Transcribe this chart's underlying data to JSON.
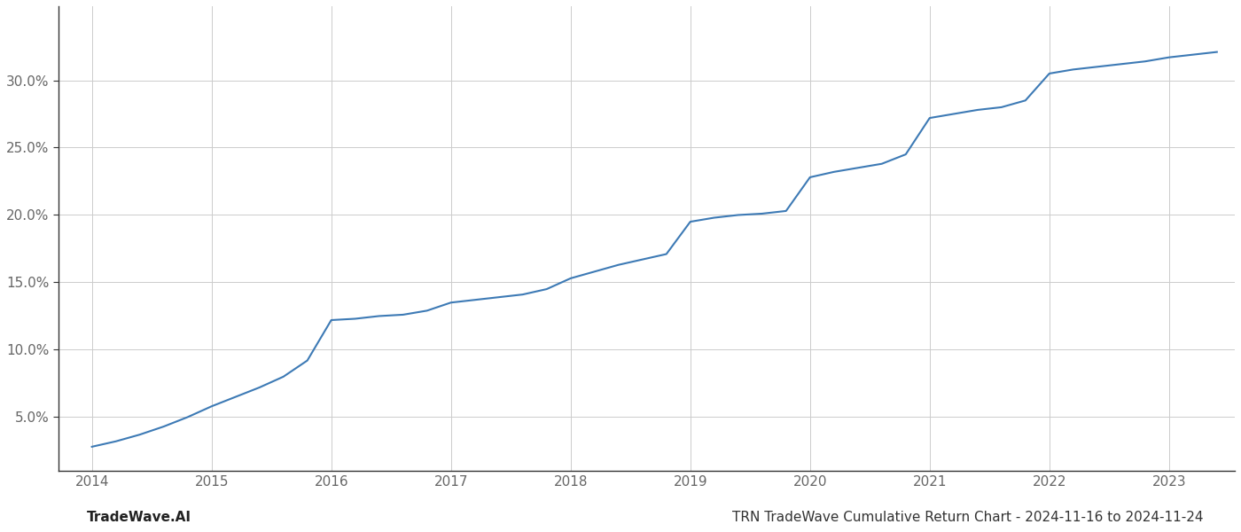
{
  "x_years": [
    2014.0,
    2014.2,
    2014.4,
    2014.6,
    2014.8,
    2015.0,
    2015.2,
    2015.4,
    2015.6,
    2015.8,
    2016.0,
    2016.2,
    2016.4,
    2016.6,
    2016.8,
    2017.0,
    2017.2,
    2017.4,
    2017.6,
    2017.8,
    2018.0,
    2018.2,
    2018.4,
    2018.6,
    2018.8,
    2019.0,
    2019.2,
    2019.4,
    2019.6,
    2019.8,
    2020.0,
    2020.2,
    2020.4,
    2020.6,
    2020.8,
    2021.0,
    2021.2,
    2021.4,
    2021.6,
    2021.8,
    2022.0,
    2022.2,
    2022.4,
    2022.6,
    2022.8,
    2023.0,
    2023.2,
    2023.4
  ],
  "y_values": [
    2.8,
    3.2,
    3.7,
    4.3,
    5.0,
    5.8,
    6.5,
    7.2,
    8.0,
    9.2,
    12.2,
    12.3,
    12.5,
    12.6,
    12.9,
    13.5,
    13.7,
    13.9,
    14.1,
    14.5,
    15.3,
    15.8,
    16.3,
    16.7,
    17.1,
    19.5,
    19.8,
    20.0,
    20.1,
    20.3,
    22.8,
    23.2,
    23.5,
    23.8,
    24.5,
    27.2,
    27.5,
    27.8,
    28.0,
    28.5,
    30.5,
    30.8,
    31.0,
    31.2,
    31.4,
    31.7,
    31.9,
    32.1
  ],
  "line_color": "#3d7ab5",
  "line_width": 1.5,
  "title": "TRN TradeWave Cumulative Return Chart - 2024-11-16 to 2024-11-24",
  "title_fontsize": 11,
  "watermark": "TradeWave.AI",
  "watermark_fontsize": 11,
  "background_color": "#ffffff",
  "grid_color": "#cccccc",
  "xlim": [
    2013.72,
    2023.55
  ],
  "ylim": [
    1.0,
    35.5
  ],
  "yticks": [
    5.0,
    10.0,
    15.0,
    20.0,
    25.0,
    30.0
  ],
  "xticks": [
    2014,
    2015,
    2016,
    2017,
    2018,
    2019,
    2020,
    2021,
    2022,
    2023
  ],
  "tick_fontsize": 11,
  "spine_color": "#333333",
  "axis_label_color": "#666666"
}
